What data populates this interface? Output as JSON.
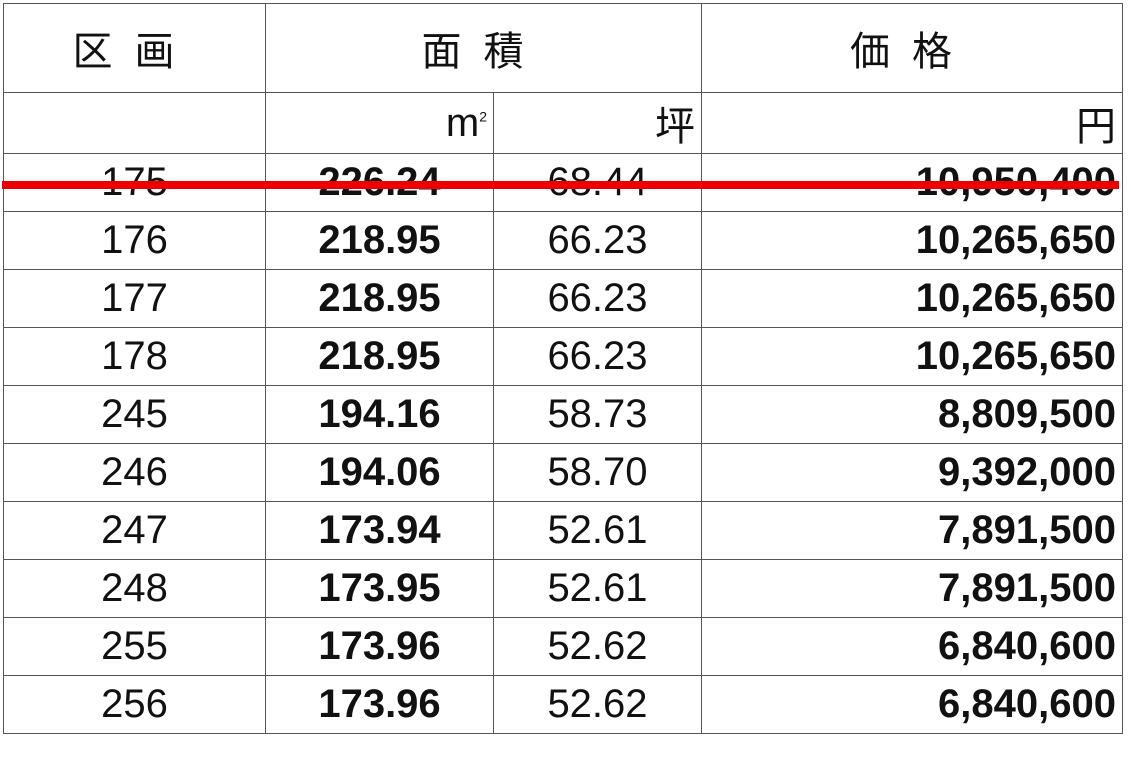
{
  "header": {
    "lot": "区画",
    "area": "面積",
    "price": "価格"
  },
  "units": {
    "sqm": "m",
    "sqm_sup": "2",
    "tsubo": "坪",
    "yen": "円"
  },
  "strike_color": "#ee0000",
  "rows": [
    {
      "lot": "175",
      "sqm": "226.24",
      "tsubo": "68.44",
      "price": "10,950,400",
      "struck": true
    },
    {
      "lot": "176",
      "sqm": "218.95",
      "tsubo": "66.23",
      "price": "10,265,650"
    },
    {
      "lot": "177",
      "sqm": "218.95",
      "tsubo": "66.23",
      "price": "10,265,650"
    },
    {
      "lot": "178",
      "sqm": "218.95",
      "tsubo": "66.23",
      "price": "10,265,650"
    },
    {
      "lot": "245",
      "sqm": "194.16",
      "tsubo": "58.73",
      "price": "8,809,500"
    },
    {
      "lot": "246",
      "sqm": "194.06",
      "tsubo": "58.70",
      "price": "9,392,000"
    },
    {
      "lot": "247",
      "sqm": "173.94",
      "tsubo": "52.61",
      "price": "7,891,500"
    },
    {
      "lot": "248",
      "sqm": "173.95",
      "tsubo": "52.61",
      "price": "7,891,500"
    },
    {
      "lot": "255",
      "sqm": "173.96",
      "tsubo": "52.62",
      "price": "6,840,600"
    },
    {
      "lot": "256",
      "sqm": "173.96",
      "tsubo": "52.62",
      "price": "6,840,600"
    }
  ]
}
